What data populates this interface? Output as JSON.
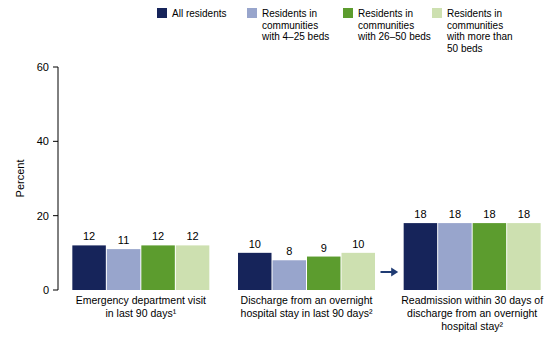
{
  "chart_data": {
    "type": "bar",
    "y_label": "Percent",
    "categories": [
      "Emergency department visit\nin last 90 days¹",
      "Discharge from an overnight\nhospital stay in last 90 days²",
      "Readmission within 30 days of\ndischarge from an overnight\nhospital stay²"
    ],
    "series": [
      {
        "name": "All residents",
        "color": "#16245a",
        "values": [
          12,
          10,
          18
        ]
      },
      {
        "name": "Residents in\ncommunities\nwith 4–25 beds",
        "color": "#98a5cc",
        "values": [
          11,
          8,
          18
        ]
      },
      {
        "name": "Residents in\ncommunities\nwith 26–50 beds",
        "color": "#5c9c2e",
        "values": [
          12,
          9,
          18
        ]
      },
      {
        "name": "Residents in\ncommunities\nwith more than\n50 beds",
        "color": "#cde0b0",
        "values": [
          12,
          10,
          18
        ]
      }
    ],
    "ylim": [
      0,
      60
    ],
    "yticks": [
      0,
      20,
      40,
      60
    ],
    "grid": false,
    "legend": "top",
    "data_labels": true
  }
}
